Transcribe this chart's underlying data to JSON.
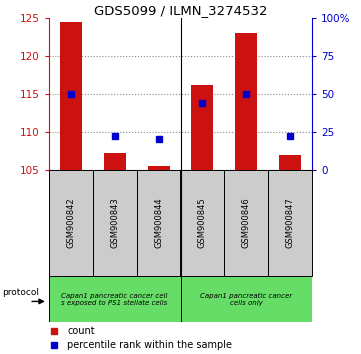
{
  "title": "GDS5099 / ILMN_3274532",
  "samples": [
    "GSM900842",
    "GSM900843",
    "GSM900844",
    "GSM900845",
    "GSM900846",
    "GSM900847"
  ],
  "count_values": [
    124.5,
    107.2,
    105.5,
    116.2,
    123.0,
    107.0
  ],
  "count_base": 105,
  "percentile_values": [
    50,
    22,
    20,
    44,
    50,
    22
  ],
  "ylim_left": [
    105,
    125
  ],
  "ylim_right": [
    0,
    100
  ],
  "yticks_left": [
    105,
    110,
    115,
    120,
    125
  ],
  "yticks_right": [
    0,
    25,
    50,
    75,
    100
  ],
  "ytick_labels_right": [
    "0",
    "25",
    "50",
    "75",
    "100%"
  ],
  "bar_color": "#cc1111",
  "percentile_color": "#0000cc",
  "bar_width": 0.5,
  "legend_count_label": "count",
  "legend_percentile_label": "percentile rank within the sample",
  "protocol_label": "protocol",
  "grid_color": "#888888",
  "label_box_color": "#cccccc",
  "protocol_box_color": "#66dd66",
  "tick_color_left": "#cc1111",
  "tick_color_right": "#0000cc",
  "group1_label": "Capan1 pancreatic cancer cell\ns exposed to PS1 stellate cells",
  "group2_label": "Capan1 pancreatic cancer\ncells only"
}
